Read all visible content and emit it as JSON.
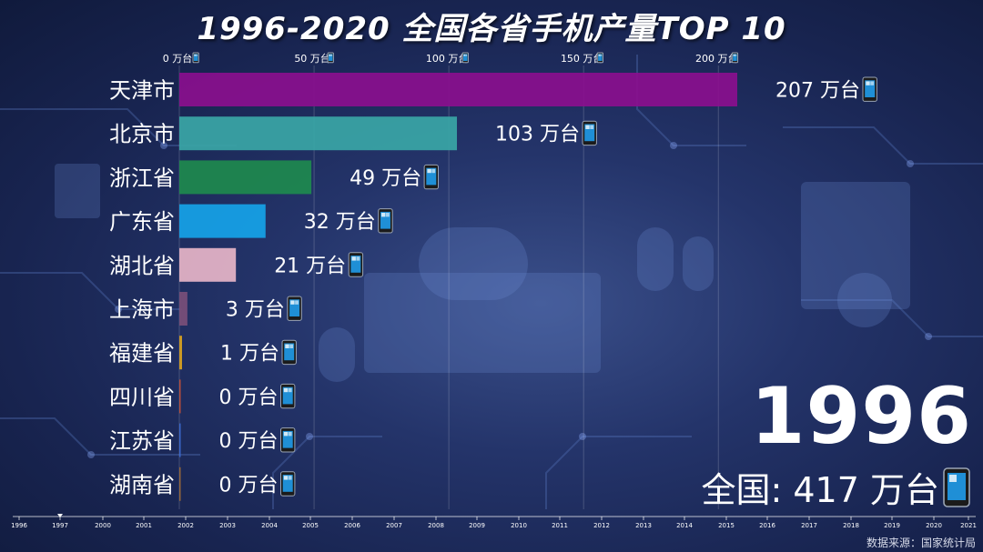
{
  "title": "1996-2020 全国各省手机产量TOP 10",
  "year": "1996",
  "total_label": "全国: 417 万台",
  "source": "数据来源：国家统计局",
  "unit_suffix": " 万台",
  "phone_icon": "mobile-phone-icon",
  "chart_data": {
    "type": "bar",
    "orientation": "horizontal",
    "title": "1996-2020 全国各省手机产量TOP 10",
    "categories": [
      "天津市",
      "北京市",
      "浙江省",
      "广东省",
      "湖北省",
      "上海市",
      "福建省",
      "四川省",
      "江苏省",
      "湖南省"
    ],
    "values": [
      207,
      103,
      49,
      32,
      21,
      3,
      1,
      0,
      0,
      0
    ],
    "colors": [
      "#8a0f8e",
      "#3aa6a6",
      "#1e8a4e",
      "#16a3e8",
      "#e7b5c8",
      "#7a4f7a",
      "#d9a320",
      "#c0503a",
      "#3c6ad0",
      "#9a6a3a"
    ],
    "xticks": [
      "0 万台",
      "50 万台",
      "100 万台",
      "150 万台",
      "200 万台"
    ],
    "xtick_values": [
      0,
      50,
      100,
      150,
      200
    ],
    "xlim": [
      0,
      207
    ],
    "timeline": {
      "labels": [
        "1996",
        "1997",
        "2000",
        "2001",
        "2002",
        "2003",
        "2004",
        "2005",
        "2006",
        "2007",
        "2008",
        "2009",
        "2010",
        "2011",
        "2012",
        "2013",
        "2014",
        "2015",
        "2016",
        "2017",
        "2018",
        "2019",
        "2020",
        "2021"
      ],
      "current": "1996"
    }
  }
}
